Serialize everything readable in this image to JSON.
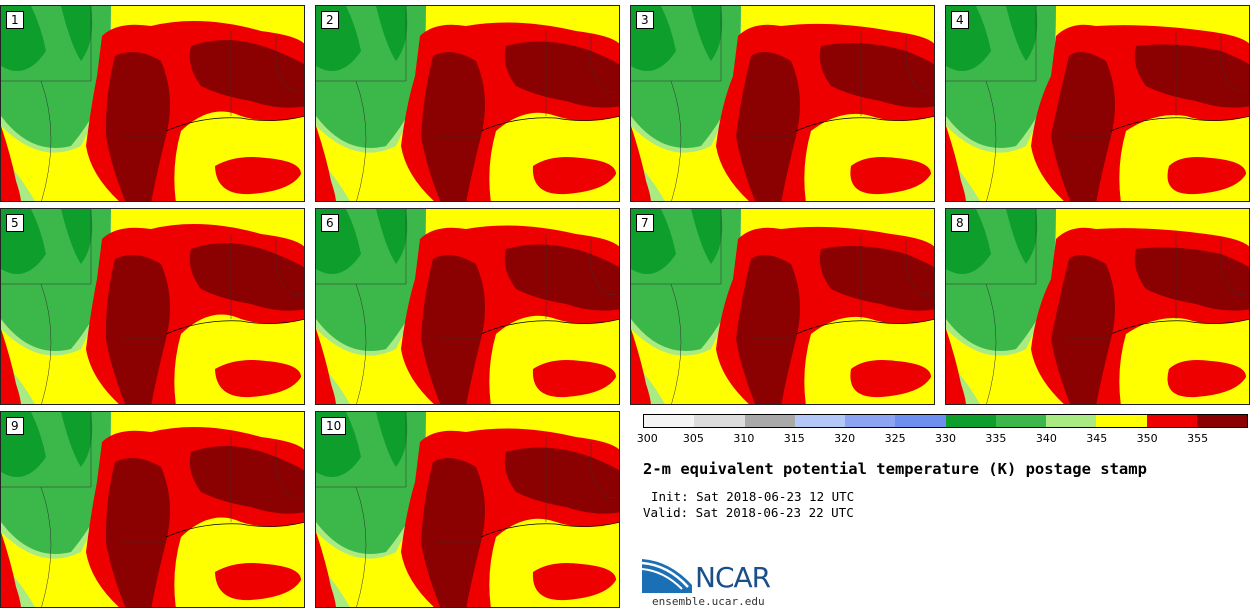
{
  "panels": [
    "1",
    "2",
    "3",
    "4",
    "5",
    "6",
    "7",
    "8",
    "9",
    "10"
  ],
  "colorbar": {
    "tick_labels": [
      "300",
      "305",
      "310",
      "315",
      "320",
      "325",
      "330",
      "335",
      "340",
      "345",
      "350",
      "355"
    ],
    "colors": [
      "#f4f4f4",
      "#dcdcdc",
      "#a9a9a9",
      "#b4c8f8",
      "#8ca5f2",
      "#6e8ef0",
      "#0d9e2c",
      "#3cb84a",
      "#a9ea82",
      "#ffff00",
      "#ee0000",
      "#8b0000"
    ]
  },
  "title": "2-m equivalent potential temperature (K) postage stamp",
  "init": "Init: Sat 2018-06-23 12 UTC",
  "valid": "Valid: Sat 2018-06-23 22 UTC",
  "logo_text": "NCAR",
  "url": "ensemble.ucar.edu",
  "map_colors": {
    "dkgreen": "#0d9e2c",
    "green": "#3cb84a",
    "ltgreen": "#a9ea82",
    "yellow": "#ffff00",
    "red": "#ee0000",
    "maroon": "#8b0000"
  }
}
